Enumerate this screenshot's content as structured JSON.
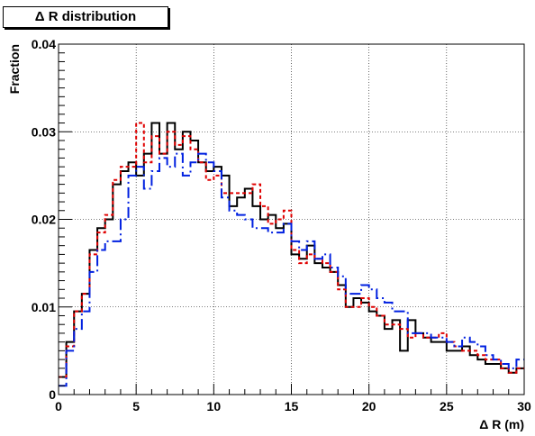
{
  "chart_data": {
    "type": "line",
    "title": "Δ R distribution",
    "xlabel": "Δ R (m)",
    "ylabel": "Fraction",
    "xlim": [
      0,
      30
    ],
    "ylim": [
      0,
      0.04
    ],
    "xticks": [
      0,
      5,
      10,
      15,
      20,
      25,
      30
    ],
    "yticks": [
      0,
      0.01,
      0.02,
      0.03,
      0.04
    ],
    "ytick_labels": [
      "0",
      "0.01",
      "0.02",
      "0.03",
      "0.04"
    ],
    "grid": true,
    "bin_width": 0.5,
    "x": [
      0,
      0.5,
      1,
      1.5,
      2,
      2.5,
      3,
      3.5,
      4,
      4.5,
      5,
      5.5,
      6,
      6.5,
      7,
      7.5,
      8,
      8.5,
      9,
      9.5,
      10,
      10.5,
      11,
      11.5,
      12,
      12.5,
      13,
      13.5,
      14,
      14.5,
      15,
      15.5,
      16,
      16.5,
      17,
      17.5,
      18,
      18.5,
      19,
      19.5,
      20,
      20.5,
      21,
      21.5,
      22,
      22.5,
      23,
      23.5,
      24,
      24.5,
      25,
      25.5,
      26,
      26.5,
      27,
      27.5,
      28,
      28.5,
      29,
      29.5
    ],
    "series": [
      {
        "style": "solid",
        "color": "#000000",
        "values": [
          0.002,
          0.006,
          0.0095,
          0.0115,
          0.0165,
          0.019,
          0.02,
          0.024,
          0.0255,
          0.0265,
          0.025,
          0.0275,
          0.031,
          0.0275,
          0.031,
          0.028,
          0.03,
          0.029,
          0.0265,
          0.0255,
          0.026,
          0.025,
          0.0215,
          0.0225,
          0.0235,
          0.0215,
          0.02,
          0.0205,
          0.019,
          0.0195,
          0.016,
          0.0155,
          0.017,
          0.015,
          0.0145,
          0.014,
          0.0125,
          0.01,
          0.011,
          0.0105,
          0.0095,
          0.009,
          0.0075,
          0.0085,
          0.005,
          0.0085,
          0.007,
          0.0065,
          0.006,
          0.006,
          0.005,
          0.005,
          0.0055,
          0.0045,
          0.004,
          0.0035,
          0.0035,
          0.003,
          0.0025,
          0.003
        ]
      },
      {
        "style": "dashed",
        "color": "#e00000",
        "values": [
          0.002,
          0.0055,
          0.0095,
          0.0115,
          0.016,
          0.0185,
          0.0205,
          0.0245,
          0.026,
          0.026,
          0.031,
          0.0265,
          0.0295,
          0.0275,
          0.03,
          0.0285,
          0.0295,
          0.028,
          0.0265,
          0.0245,
          0.025,
          0.023,
          0.023,
          0.023,
          0.023,
          0.024,
          0.0215,
          0.0195,
          0.02,
          0.021,
          0.0165,
          0.015,
          0.016,
          0.0155,
          0.015,
          0.014,
          0.012,
          0.01,
          0.01,
          0.011,
          0.01,
          0.009,
          0.008,
          0.008,
          0.0075,
          0.0065,
          0.007,
          0.0065,
          0.0065,
          0.007,
          0.006,
          0.0055,
          0.005,
          0.005,
          0.0045,
          0.004,
          0.004,
          0.003,
          0.0025,
          0.003
        ]
      },
      {
        "style": "dashdot",
        "color": "#0020e0",
        "values": [
          0.001,
          0.005,
          0.0075,
          0.0095,
          0.014,
          0.0165,
          0.0175,
          0.0175,
          0.02,
          0.025,
          0.026,
          0.0235,
          0.0255,
          0.027,
          0.026,
          0.0275,
          0.025,
          0.0265,
          0.0275,
          0.0265,
          0.0255,
          0.0225,
          0.021,
          0.0205,
          0.02,
          0.019,
          0.019,
          0.0185,
          0.0185,
          0.0195,
          0.0175,
          0.0165,
          0.0175,
          0.0155,
          0.016,
          0.0145,
          0.0135,
          0.0115,
          0.0115,
          0.0125,
          0.012,
          0.011,
          0.0105,
          0.0095,
          0.0095,
          0.007,
          0.007,
          0.007,
          0.0065,
          0.0065,
          0.006,
          0.0055,
          0.0065,
          0.006,
          0.0055,
          0.0045,
          0.004,
          0.0035,
          0.003,
          0.004
        ]
      }
    ]
  }
}
